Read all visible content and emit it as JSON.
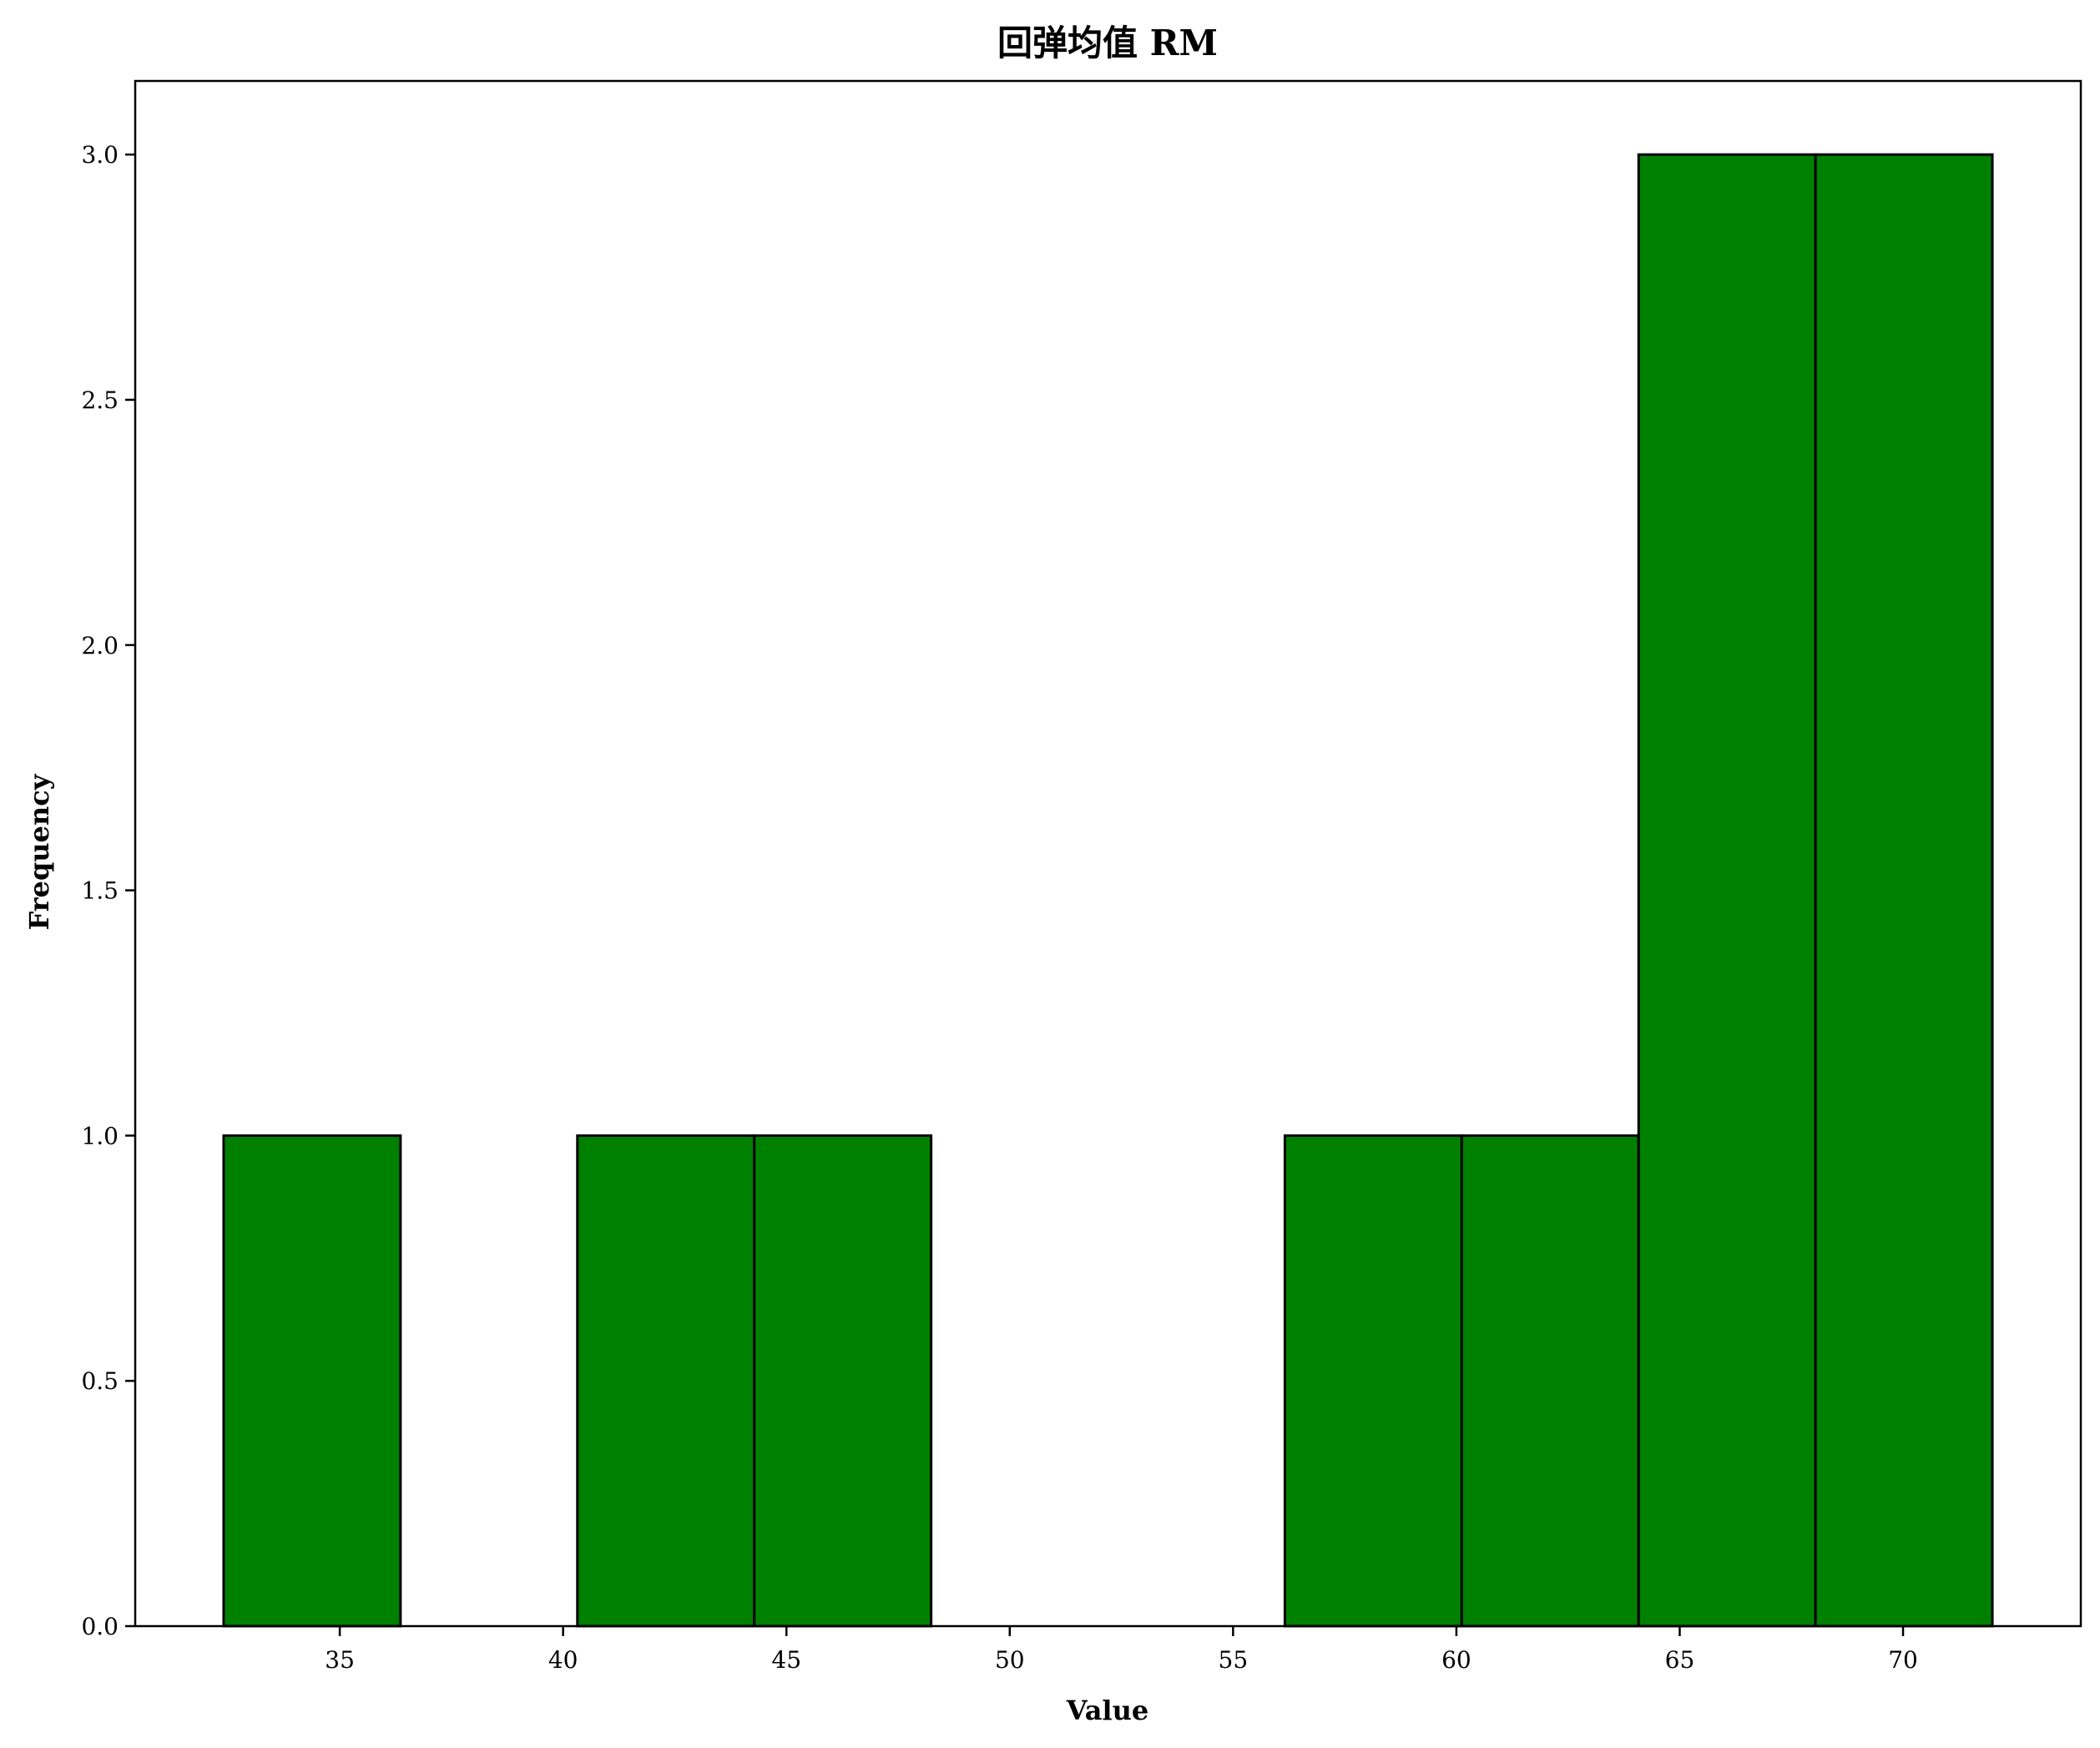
{
  "chart_data": {
    "type": "bar",
    "subtype": "histogram",
    "title": "回弹均值 RM",
    "xlabel": "Value",
    "ylabel": "Frequency",
    "bin_edges": [
      32.4,
      36.36,
      40.32,
      44.28,
      48.24,
      52.2,
      56.16,
      60.12,
      64.08,
      68.04,
      72.0
    ],
    "values": [
      1,
      0,
      1,
      1,
      0,
      0,
      1,
      1,
      3,
      3
    ],
    "xlim": [
      30.42,
      73.98
    ],
    "ylim": [
      0,
      3.15
    ],
    "xticks": [
      35,
      40,
      45,
      50,
      55,
      60,
      65,
      70
    ],
    "yticks": [
      0.0,
      0.5,
      1.0,
      1.5,
      2.0,
      2.5,
      3.0
    ],
    "bar_color": "#008000",
    "edge_color": "#000000",
    "grid": false,
    "legend": "none"
  }
}
